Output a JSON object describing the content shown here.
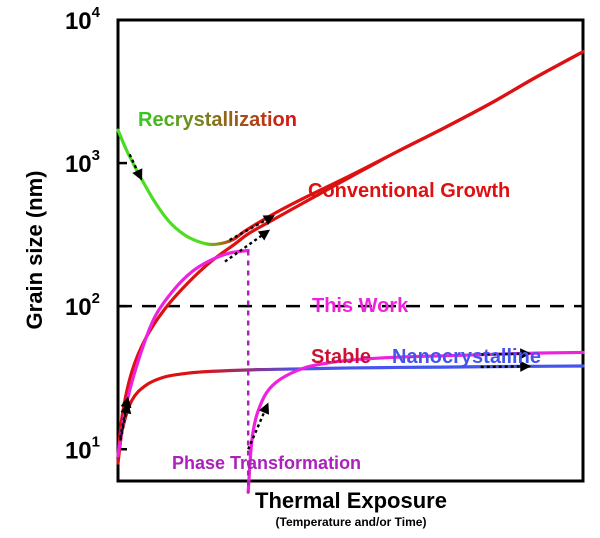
{
  "chart_data": {
    "type": "line",
    "title": "",
    "xlabel": "Thermal Exposure",
    "xlabel_sub": "(Temperature and/or Time)",
    "ylabel": "Grain size (nm)",
    "y_scale": "log",
    "ylim": [
      6,
      10000
    ],
    "xlim": [
      0,
      1
    ],
    "x_tick_labels": false,
    "y_ticks": [
      {
        "value": 10,
        "base": "10",
        "exp": "1"
      },
      {
        "value": 100,
        "base": "10",
        "exp": "2"
      },
      {
        "value": 1000,
        "base": "10",
        "exp": "3"
      },
      {
        "value": 10000,
        "base": "10",
        "exp": "4"
      }
    ],
    "reference_line": {
      "y": 100,
      "style": "dashed",
      "color": "#000000"
    },
    "series": [
      {
        "name": "Conventional Growth",
        "color": "#dd1111",
        "x": [
          0.0,
          0.01,
          0.03,
          0.06,
          0.1,
          0.15,
          0.2,
          0.25,
          0.28,
          0.32,
          0.4,
          0.5,
          0.6,
          0.7,
          0.8,
          0.9,
          1.0
        ],
        "y": [
          9,
          18,
          35,
          60,
          95,
          145,
          205,
          270,
          320,
          380,
          530,
          800,
          1200,
          1750,
          2600,
          4000,
          6000
        ]
      },
      {
        "name": "Recrystallization",
        "color": "#44dd22",
        "color_end": "#dd1111",
        "x": [
          0.0,
          0.02,
          0.05,
          0.08,
          0.11,
          0.14,
          0.17,
          0.2,
          0.23,
          0.25,
          0.27,
          0.3,
          0.35,
          0.4,
          0.5,
          0.6,
          0.7,
          0.8,
          0.9,
          1.0
        ],
        "y": [
          1700,
          1200,
          780,
          530,
          390,
          320,
          285,
          270,
          278,
          295,
          330,
          380,
          470,
          570,
          820,
          1200,
          1750,
          2600,
          4000,
          6000
        ]
      },
      {
        "name": "This Work",
        "color": "#ee22dd",
        "x": [
          0.0,
          0.02,
          0.05,
          0.08,
          0.12,
          0.16,
          0.2,
          0.24,
          0.28
        ],
        "y": [
          9,
          22,
          48,
          85,
          130,
          175,
          210,
          235,
          245
        ]
      },
      {
        "name": "This Work (after transformation)",
        "color": "#ee22dd",
        "x": [
          0.28,
          0.285,
          0.29,
          0.3,
          0.32,
          0.35,
          0.4,
          0.45,
          0.5,
          0.6,
          0.7,
          0.8,
          0.9,
          1.0
        ],
        "y": [
          5,
          9,
          13,
          18,
          25,
          31,
          37,
          40,
          42,
          44,
          45,
          46,
          47,
          47.5
        ]
      },
      {
        "name": "Stable Nanocrystalline",
        "color": "#dd1111",
        "color_end": "#4455ee",
        "x": [
          0.0,
          0.01,
          0.03,
          0.06,
          0.1,
          0.15,
          0.2,
          0.3,
          0.4,
          0.5,
          0.6,
          0.7,
          0.8,
          0.9,
          1.0
        ],
        "y": [
          8,
          14,
          22,
          28,
          32,
          34,
          35,
          36,
          36.5,
          37,
          37.3,
          37.5,
          37.8,
          38,
          38.2
        ]
      }
    ],
    "transition": {
      "label": "Phase Transformation",
      "x": 0.28,
      "y_from": 245,
      "y_to": 5,
      "color": "#aa22bb",
      "style": "dotted"
    },
    "annotations": [
      {
        "text": "Recrystallization",
        "color": "#33cc22",
        "color_end": "#dd1111"
      },
      {
        "text": "Conventional Growth",
        "color": "#dd1111"
      },
      {
        "text": "This Work",
        "color": "#ee22dd"
      },
      {
        "text": "Stable",
        "color": "#cc1133"
      },
      {
        "text": "Nanocrystalline",
        "color": "#4455ee"
      },
      {
        "text": "Phase Transformation",
        "color": "#aa22bb"
      }
    ],
    "grid": false,
    "legend": "none"
  }
}
